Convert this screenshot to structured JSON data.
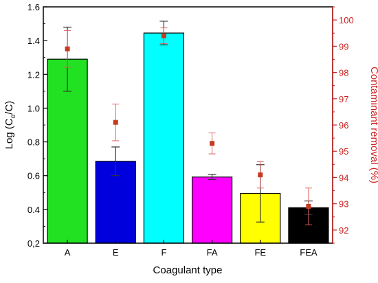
{
  "chart_data": {
    "type": "bar",
    "xlabel": "Coagulant type",
    "ylabel_left": {
      "main": "Log (C",
      "sub": "o",
      "tail": "/C)"
    },
    "ylabel_right": "Contaminant removal (%)",
    "categories": [
      "A",
      "E",
      "F",
      "FA",
      "FE",
      "FEA"
    ],
    "bar_colors": [
      "#22e022",
      "#0000dd",
      "#00ffff",
      "#ff00ff",
      "#ffff00",
      "#000000"
    ],
    "right_axis_color": "#cc2222",
    "marker_color": "#c83a1e",
    "left_axis": {
      "min": 0.2,
      "max": 1.6,
      "ticks": [
        "0,2",
        "0.4",
        "0.6",
        "0.8",
        "1.0",
        "1.2",
        "1.4",
        "1.6"
      ]
    },
    "right_axis": {
      "min": 91.5,
      "max": 100.5,
      "ticks": [
        "92",
        "93",
        "94",
        "95",
        "96",
        "97",
        "98",
        "99",
        "100"
      ]
    },
    "series": [
      {
        "axis": "left",
        "values": [
          1.29,
          0.685,
          1.445,
          0.592,
          0.495,
          0.41
        ],
        "errors": [
          0.19,
          0.085,
          0.07,
          0.015,
          0.17,
          0.04
        ]
      },
      {
        "axis": "right",
        "values": [
          98.9,
          96.1,
          99.4,
          95.3,
          94.1,
          92.9
        ],
        "errors": [
          0.7,
          0.7,
          0.3,
          0.4,
          0.5,
          0.7
        ]
      }
    ]
  }
}
